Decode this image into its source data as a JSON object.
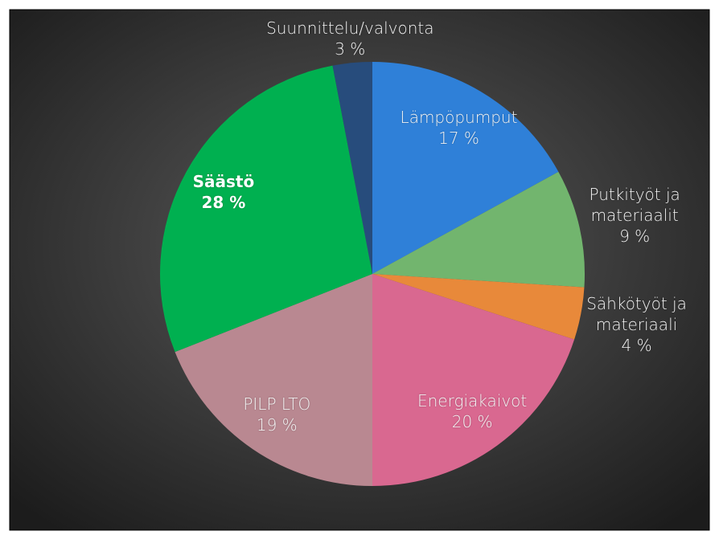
{
  "chart_data": {
    "type": "pie",
    "categories": [
      "Lämpöpumput",
      "Putkityöt ja materiaalit",
      "Sähkötyöt ja materiaali",
      "Energiakaivot",
      "PILP LTO",
      "Säästö",
      "Suunnittelu/valvonta"
    ],
    "values": [
      17,
      9,
      4,
      20,
      19,
      28,
      3
    ],
    "value_labels": [
      "17 %",
      "9 %",
      "4 %",
      "20 %",
      "19 %",
      "28 %",
      "3 %"
    ],
    "colors": [
      "#2f80d8",
      "#72b56e",
      "#e8893a",
      "#d96890",
      "#b98891",
      "#00b050",
      "#274c7c"
    ]
  }
}
